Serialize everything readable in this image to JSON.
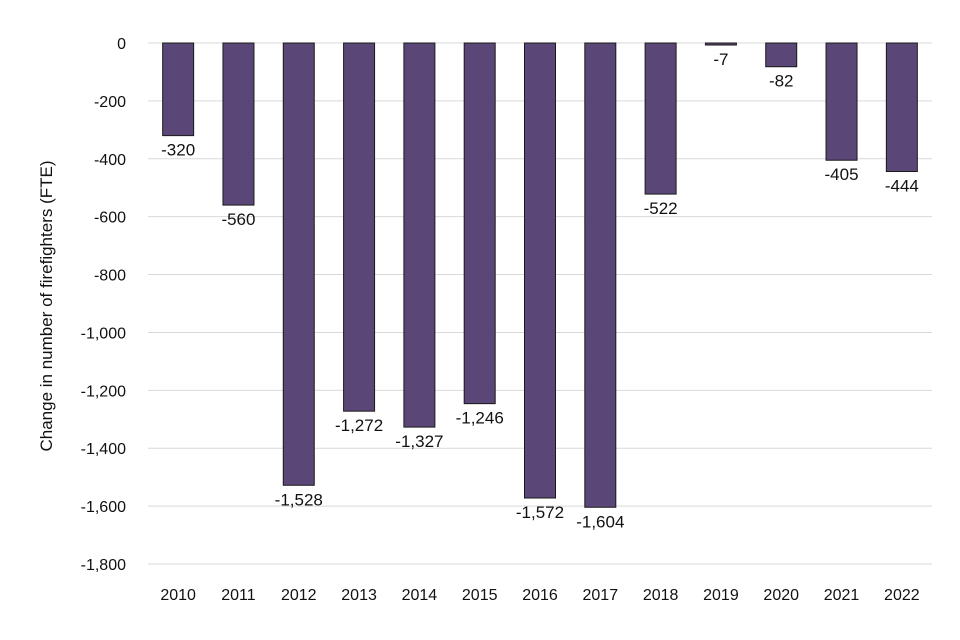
{
  "chart_data": {
    "type": "bar",
    "title": "",
    "xlabel": "",
    "ylabel": "Change in number of firefighters (FTE)",
    "categories": [
      "2010",
      "2011",
      "2012",
      "2013",
      "2014",
      "2015",
      "2016",
      "2017",
      "2018",
      "2019",
      "2020",
      "2021",
      "2022"
    ],
    "values": [
      -320,
      -560,
      -1528,
      -1272,
      -1327,
      -1246,
      -1572,
      -1604,
      -522,
      -7,
      -82,
      -405,
      -444
    ],
    "value_labels": [
      "-320",
      "-560",
      "-1,528",
      "-1,272",
      "-1,327",
      "-1,246",
      "-1,572",
      "-1,604",
      "-522",
      "-7",
      "-82",
      "-405",
      "-444"
    ],
    "ylim": [
      -1800,
      0
    ],
    "yticks": [
      0,
      -200,
      -400,
      -600,
      -800,
      -1000,
      -1200,
      -1400,
      -1600,
      -1800
    ],
    "ytick_labels": [
      "0",
      "-200",
      "-400",
      "-600",
      "-800",
      "-1,000",
      "-1,200",
      "-1,400",
      "-1,600",
      "-1,800"
    ],
    "grid": true,
    "bar_color": "#5b4777",
    "grid_color": "#d9d9d9"
  }
}
